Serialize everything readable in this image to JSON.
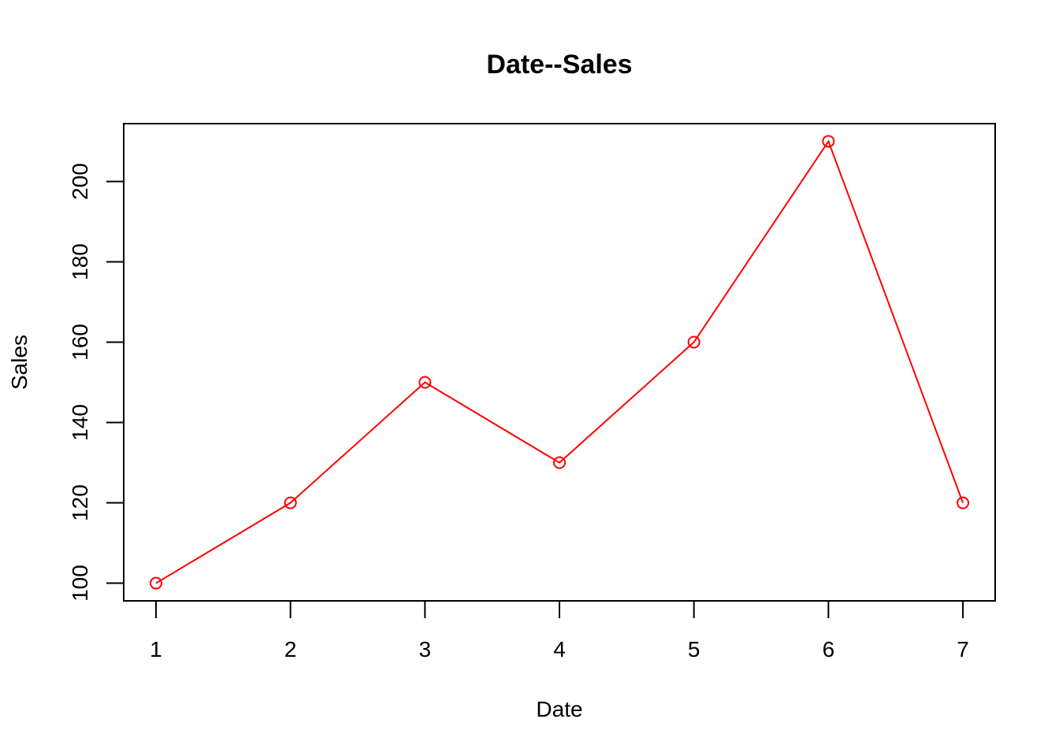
{
  "chart_data": {
    "type": "line",
    "title": "Date--Sales",
    "xlabel": "Date",
    "ylabel": "Sales",
    "x": [
      1,
      2,
      3,
      4,
      5,
      6,
      7
    ],
    "series": [
      {
        "values": [
          100,
          120,
          150,
          130,
          160,
          210,
          120
        ],
        "color": "#ff0000",
        "marker": "open-circle"
      }
    ],
    "xticks": [
      1,
      2,
      3,
      4,
      5,
      6,
      7
    ],
    "yticks": [
      100,
      120,
      140,
      160,
      180,
      200
    ],
    "xlim": [
      0.76,
      7.24
    ],
    "ylim": [
      95.6,
      214.4
    ],
    "grid": false,
    "legend": "none",
    "box": true
  }
}
